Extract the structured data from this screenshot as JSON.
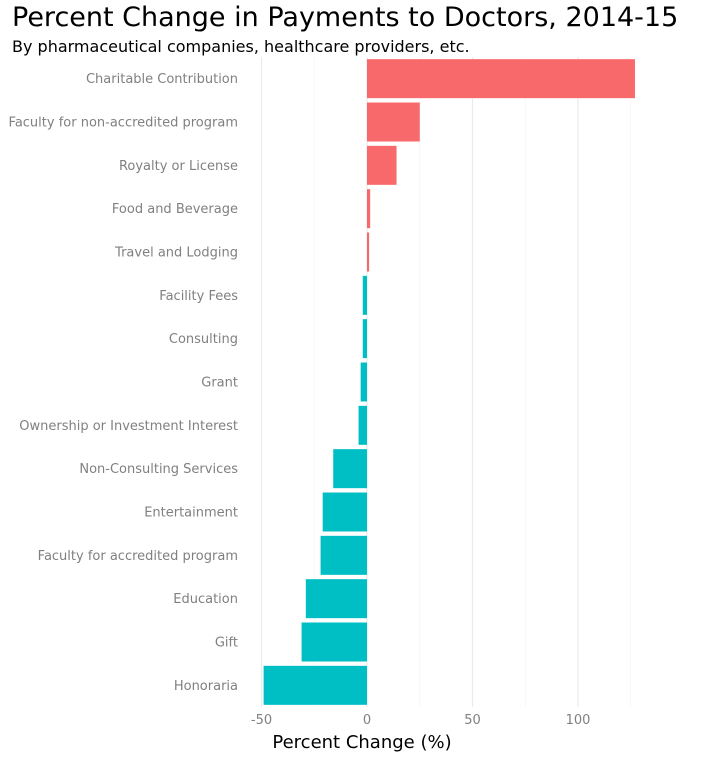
{
  "chart_data": {
    "type": "bar",
    "orientation": "horizontal",
    "title": "Percent Change in Payments to Doctors, 2014-15",
    "subtitle": "By pharmaceutical companies, healthcare providers, etc.",
    "xlabel": "Percent Change (%)",
    "ylabel": "",
    "xlim": [
      -55,
      127
    ],
    "xticks": [
      -50,
      0,
      50,
      100
    ],
    "xtick_labels": [
      "-50",
      "0",
      "50",
      "100"
    ],
    "grid": true,
    "positive_color": "#f8696b",
    "negative_color": "#00bfc4",
    "categories": [
      "Charitable Contribution",
      "Faculty for non-accredited program",
      "Royalty or License",
      "Food and Beverage",
      "Travel and Lodging",
      "Facility Fees",
      "Consulting",
      "Grant",
      "Ownership or Investment Interest",
      "Non-Consulting Services",
      "Entertainment",
      "Faculty for accredited program",
      "Education",
      "Gift",
      "Honoraria"
    ],
    "values": [
      127,
      25,
      14,
      1.5,
      1,
      -2,
      -2,
      -3,
      -4,
      -16,
      -21,
      -22,
      -29,
      -31,
      -49
    ]
  }
}
